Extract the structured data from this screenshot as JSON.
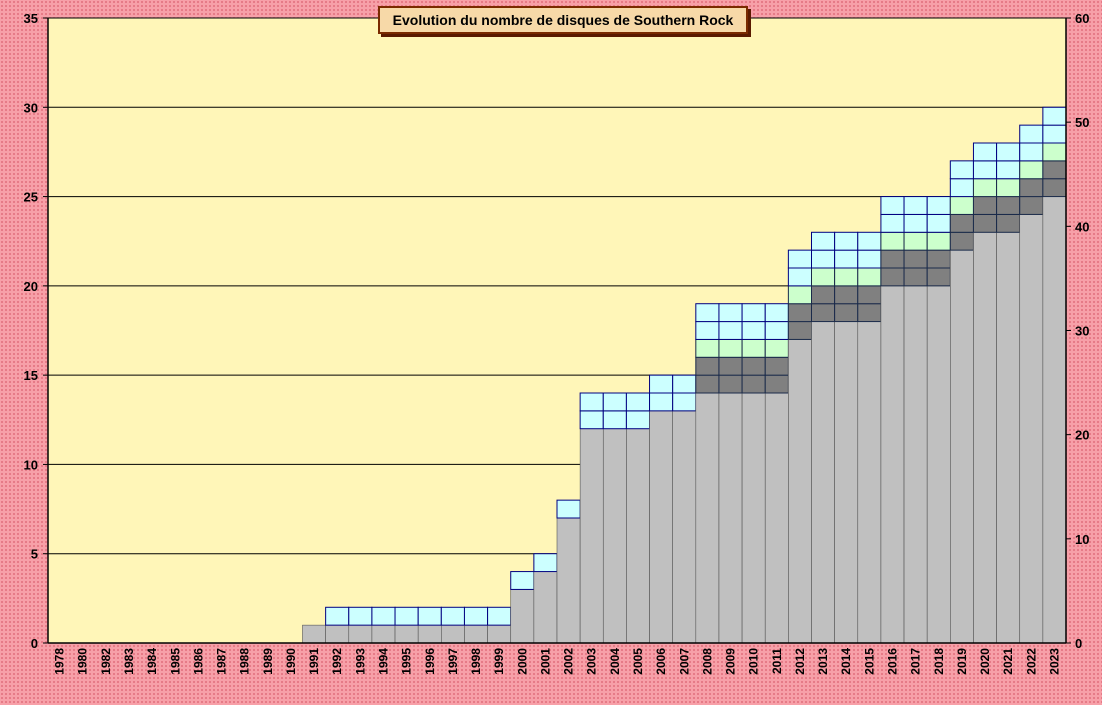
{
  "chart_data": {
    "type": "bar",
    "stacked": true,
    "title": "Evolution du nombre de disques de Southern Rock",
    "categories": [
      "1978",
      "1980",
      "1982",
      "1983",
      "1984",
      "1985",
      "1986",
      "1987",
      "1988",
      "1989",
      "1990",
      "1991",
      "1992",
      "1993",
      "1994",
      "1995",
      "1996",
      "1997",
      "1998",
      "1999",
      "2000",
      "2001",
      "2002",
      "2003",
      "2004",
      "2005",
      "2006",
      "2007",
      "2008",
      "2009",
      "2010",
      "2011",
      "2012",
      "2013",
      "2014",
      "2015",
      "2016",
      "2017",
      "2018",
      "2019",
      "2020",
      "2021",
      "2022",
      "2023"
    ],
    "series": [
      {
        "color": "#c0c0c0",
        "values": [
          0,
          0,
          0,
          0,
          0,
          0,
          0,
          0,
          0,
          0,
          0,
          1,
          1,
          1,
          1,
          1,
          1,
          1,
          1,
          1,
          3,
          4,
          7,
          12,
          12,
          12,
          13,
          13,
          14,
          14,
          14,
          14,
          17,
          18,
          18,
          18,
          20,
          20,
          20,
          22,
          23,
          23,
          24,
          25
        ]
      },
      {
        "color": "#808080",
        "values": [
          0,
          0,
          0,
          0,
          0,
          0,
          0,
          0,
          0,
          0,
          0,
          0,
          0,
          0,
          0,
          0,
          0,
          0,
          0,
          0,
          0,
          0,
          0,
          0,
          0,
          0,
          0,
          0,
          2,
          2,
          2,
          2,
          2,
          2,
          2,
          2,
          2,
          2,
          2,
          2,
          2,
          2,
          2,
          2
        ]
      },
      {
        "color": "#ccffcc",
        "values": [
          0,
          0,
          0,
          0,
          0,
          0,
          0,
          0,
          0,
          0,
          0,
          0,
          0,
          0,
          0,
          0,
          0,
          0,
          0,
          0,
          0,
          0,
          0,
          0,
          0,
          0,
          0,
          0,
          1,
          1,
          1,
          1,
          1,
          1,
          1,
          1,
          1,
          1,
          1,
          1,
          1,
          1,
          1,
          1
        ]
      },
      {
        "color": "#ccffff",
        "values": [
          0,
          0,
          0,
          0,
          0,
          0,
          0,
          0,
          0,
          0,
          0,
          0,
          1,
          1,
          1,
          1,
          1,
          1,
          1,
          1,
          1,
          1,
          1,
          2,
          2,
          2,
          2,
          2,
          2,
          2,
          2,
          2,
          2,
          2,
          2,
          2,
          2,
          2,
          2,
          2,
          2,
          2,
          2,
          2
        ]
      }
    ],
    "ylim": [
      0,
      35
    ],
    "y_ticks": [
      0,
      5,
      10,
      15,
      20,
      25,
      30,
      35
    ],
    "y2lim": [
      0,
      60
    ],
    "y2_ticks": [
      0,
      10,
      20,
      30,
      40,
      50,
      60
    ],
    "grid": true,
    "legend": "none",
    "colors": {
      "plot_background": "#fff6b8",
      "page_background": "#f7a0a8",
      "outline_dark": "#1a2a4a",
      "outline_blue": "#000080"
    }
  }
}
